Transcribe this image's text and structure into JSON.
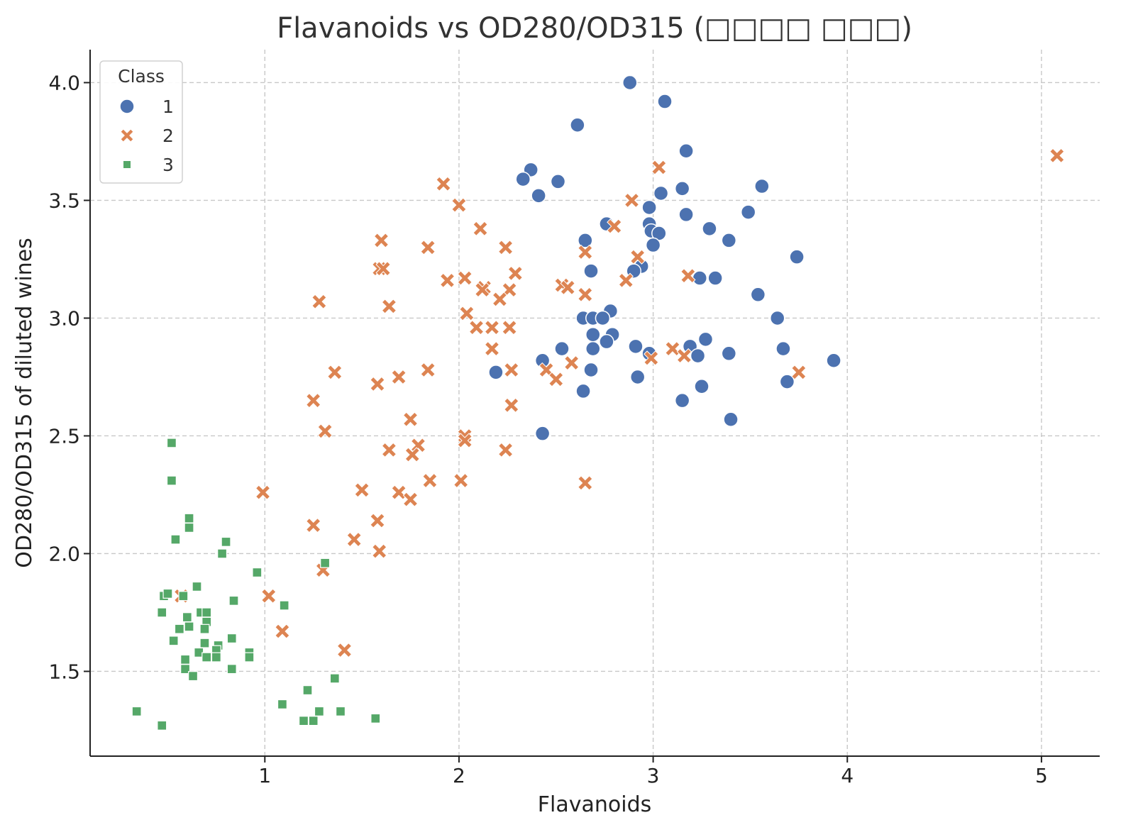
{
  "chart_data": {
    "type": "scatter",
    "title": "Flavanoids vs OD280/OD315 (□□□□ □□□)",
    "xlabel": "Flavanoids",
    "ylabel": "OD280/OD315 of diluted wines",
    "xlim": [
      0.1,
      5.3
    ],
    "ylim": [
      1.14,
      4.14
    ],
    "x_ticks": [
      "1",
      "2",
      "3",
      "4",
      "5"
    ],
    "y_ticks": [
      "1.5",
      "2.0",
      "2.5",
      "3.0",
      "3.5",
      "4.0"
    ],
    "grid": true,
    "legend": {
      "title": "Class",
      "position": "top-left"
    },
    "series": [
      {
        "name": "1",
        "marker": "circle",
        "color": "#4c72b0",
        "points": [
          [
            2.88,
            4.0
          ],
          [
            3.06,
            3.92
          ],
          [
            2.61,
            3.82
          ],
          [
            3.17,
            3.71
          ],
          [
            2.37,
            3.63
          ],
          [
            2.33,
            3.59
          ],
          [
            2.51,
            3.58
          ],
          [
            3.56,
            3.56
          ],
          [
            3.15,
            3.55
          ],
          [
            3.04,
            3.53
          ],
          [
            2.41,
            3.52
          ],
          [
            2.98,
            3.47
          ],
          [
            3.49,
            3.45
          ],
          [
            3.17,
            3.44
          ],
          [
            2.98,
            3.4
          ],
          [
            2.76,
            3.4
          ],
          [
            3.29,
            3.38
          ],
          [
            2.99,
            3.37
          ],
          [
            3.03,
            3.36
          ],
          [
            2.65,
            3.33
          ],
          [
            3.39,
            3.33
          ],
          [
            3.0,
            3.31
          ],
          [
            3.74,
            3.26
          ],
          [
            2.94,
            3.22
          ],
          [
            2.9,
            3.2
          ],
          [
            2.68,
            3.2
          ],
          [
            3.24,
            3.17
          ],
          [
            3.32,
            3.17
          ],
          [
            3.54,
            3.1
          ],
          [
            2.78,
            3.03
          ],
          [
            2.64,
            3.0
          ],
          [
            2.69,
            3.0
          ],
          [
            2.74,
            3.0
          ],
          [
            3.64,
            3.0
          ],
          [
            2.69,
            2.93
          ],
          [
            2.79,
            2.93
          ],
          [
            3.27,
            2.91
          ],
          [
            2.76,
            2.9
          ],
          [
            2.91,
            2.88
          ],
          [
            3.19,
            2.88
          ],
          [
            2.53,
            2.87
          ],
          [
            2.69,
            2.87
          ],
          [
            3.67,
            2.87
          ],
          [
            2.98,
            2.85
          ],
          [
            3.39,
            2.85
          ],
          [
            3.23,
            2.84
          ],
          [
            2.43,
            2.82
          ],
          [
            3.93,
            2.82
          ],
          [
            2.68,
            2.78
          ],
          [
            2.19,
            2.77
          ],
          [
            2.92,
            2.75
          ],
          [
            3.69,
            2.73
          ],
          [
            3.25,
            2.71
          ],
          [
            2.64,
            2.69
          ],
          [
            3.15,
            2.65
          ],
          [
            3.4,
            2.57
          ],
          [
            2.43,
            2.51
          ]
        ]
      },
      {
        "name": "2",
        "marker": "x",
        "color": "#dd8452",
        "points": [
          [
            5.08,
            3.69
          ],
          [
            3.03,
            3.64
          ],
          [
            1.92,
            3.57
          ],
          [
            2.89,
            3.5
          ],
          [
            2.0,
            3.48
          ],
          [
            2.8,
            3.39
          ],
          [
            2.11,
            3.38
          ],
          [
            1.6,
            3.33
          ],
          [
            1.84,
            3.3
          ],
          [
            2.24,
            3.3
          ],
          [
            2.65,
            3.28
          ],
          [
            2.92,
            3.26
          ],
          [
            1.59,
            3.21
          ],
          [
            1.61,
            3.21
          ],
          [
            2.29,
            3.19
          ],
          [
            3.18,
            3.18
          ],
          [
            1.94,
            3.16
          ],
          [
            2.03,
            3.17
          ],
          [
            2.86,
            3.16
          ],
          [
            2.53,
            3.14
          ],
          [
            2.56,
            3.13
          ],
          [
            2.13,
            3.13
          ],
          [
            2.12,
            3.12
          ],
          [
            2.26,
            3.12
          ],
          [
            2.65,
            3.1
          ],
          [
            2.21,
            3.08
          ],
          [
            1.28,
            3.07
          ],
          [
            1.64,
            3.05
          ],
          [
            2.04,
            3.02
          ],
          [
            2.09,
            2.96
          ],
          [
            2.17,
            2.96
          ],
          [
            2.26,
            2.96
          ],
          [
            2.17,
            2.87
          ],
          [
            3.1,
            2.87
          ],
          [
            3.16,
            2.84
          ],
          [
            2.99,
            2.83
          ],
          [
            2.58,
            2.81
          ],
          [
            1.84,
            2.78
          ],
          [
            2.27,
            2.78
          ],
          [
            2.45,
            2.78
          ],
          [
            1.36,
            2.77
          ],
          [
            3.75,
            2.77
          ],
          [
            1.69,
            2.75
          ],
          [
            2.5,
            2.74
          ],
          [
            1.58,
            2.72
          ],
          [
            1.25,
            2.65
          ],
          [
            2.27,
            2.63
          ],
          [
            1.75,
            2.57
          ],
          [
            1.31,
            2.52
          ],
          [
            2.03,
            2.5
          ],
          [
            2.03,
            2.48
          ],
          [
            1.79,
            2.46
          ],
          [
            1.64,
            2.44
          ],
          [
            2.24,
            2.44
          ],
          [
            1.76,
            2.42
          ],
          [
            1.85,
            2.31
          ],
          [
            2.01,
            2.31
          ],
          [
            2.65,
            2.3
          ],
          [
            1.5,
            2.27
          ],
          [
            0.99,
            2.26
          ],
          [
            1.69,
            2.26
          ],
          [
            1.75,
            2.23
          ],
          [
            1.58,
            2.14
          ],
          [
            1.25,
            2.12
          ],
          [
            1.46,
            2.06
          ],
          [
            1.59,
            2.01
          ],
          [
            1.3,
            1.93
          ],
          [
            1.02,
            1.82
          ],
          [
            0.57,
            1.82
          ],
          [
            1.09,
            1.67
          ],
          [
            1.41,
            1.59
          ]
        ]
      },
      {
        "name": "3",
        "marker": "square",
        "color": "#55a868",
        "points": [
          [
            0.52,
            2.47
          ],
          [
            0.52,
            2.31
          ],
          [
            0.61,
            2.15
          ],
          [
            0.61,
            2.11
          ],
          [
            0.54,
            2.06
          ],
          [
            0.8,
            2.05
          ],
          [
            0.78,
            2.0
          ],
          [
            1.31,
            1.96
          ],
          [
            0.96,
            1.92
          ],
          [
            0.65,
            1.86
          ],
          [
            0.48,
            1.82
          ],
          [
            0.5,
            1.83
          ],
          [
            0.58,
            1.82
          ],
          [
            0.84,
            1.8
          ],
          [
            1.1,
            1.78
          ],
          [
            0.47,
            1.75
          ],
          [
            0.67,
            1.75
          ],
          [
            0.7,
            1.75
          ],
          [
            0.6,
            1.73
          ],
          [
            0.7,
            1.71
          ],
          [
            0.61,
            1.69
          ],
          [
            0.69,
            1.68
          ],
          [
            0.56,
            1.68
          ],
          [
            0.53,
            1.63
          ],
          [
            0.83,
            1.64
          ],
          [
            0.69,
            1.62
          ],
          [
            0.76,
            1.61
          ],
          [
            0.75,
            1.59
          ],
          [
            0.66,
            1.58
          ],
          [
            0.92,
            1.58
          ],
          [
            0.92,
            1.56
          ],
          [
            0.7,
            1.56
          ],
          [
            0.75,
            1.56
          ],
          [
            0.59,
            1.55
          ],
          [
            0.59,
            1.51
          ],
          [
            0.83,
            1.51
          ],
          [
            0.63,
            1.48
          ],
          [
            1.36,
            1.47
          ],
          [
            1.22,
            1.42
          ],
          [
            1.09,
            1.36
          ],
          [
            0.34,
            1.33
          ],
          [
            1.28,
            1.33
          ],
          [
            1.39,
            1.33
          ],
          [
            1.57,
            1.3
          ],
          [
            1.2,
            1.29
          ],
          [
            1.25,
            1.29
          ],
          [
            0.47,
            1.27
          ]
        ]
      }
    ]
  }
}
